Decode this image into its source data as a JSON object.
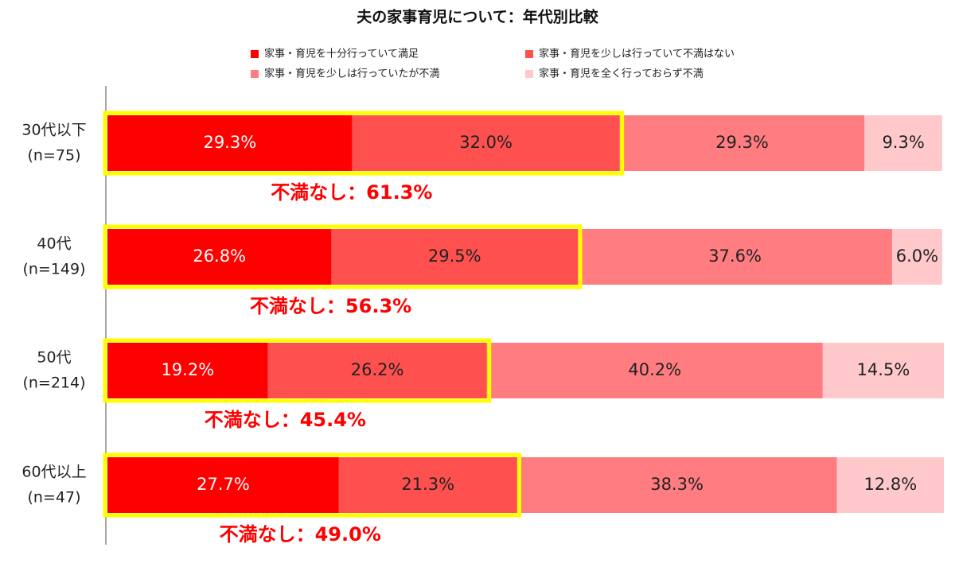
{
  "chart_data": {
    "type": "stacked-bar-horizontal",
    "title": "夫の家事育児について：年代別比較",
    "categories": [
      "30代以下",
      "40代",
      "50代",
      "60代以上"
    ],
    "category_notes": [
      "(n=75)",
      "(n=149)",
      "(n=214)",
      "(n=47)"
    ],
    "series": [
      {
        "name": "家事・育児を十分行っていて満足",
        "color": "#ff0000",
        "values": [
          29.3,
          26.8,
          19.2,
          27.7
        ],
        "value_labels": [
          "29.3%",
          "26.8%",
          "19.2%",
          "27.7%"
        ]
      },
      {
        "name": "家事・育児を少しは行っていて不満はない",
        "color": "#ff5050",
        "values": [
          32.0,
          29.5,
          26.2,
          21.3
        ],
        "value_labels": [
          "32.0%",
          "29.5%",
          "26.2%",
          "21.3%"
        ]
      },
      {
        "name": "家事・育児を少しは行っていたが不満",
        "color": "#ff7c80",
        "values": [
          29.3,
          37.6,
          40.2,
          38.3
        ],
        "value_labels": [
          "29.3%",
          "37.6%",
          "40.2%",
          "38.3%"
        ]
      },
      {
        "name": "家事・育児を全く行っておらず不満",
        "color": "#ffc9cc",
        "values": [
          9.3,
          6.0,
          14.5,
          12.8
        ],
        "value_labels": [
          "9.3%",
          "6.0%",
          "14.5%",
          "12.8%"
        ]
      }
    ],
    "annotations": [
      "不満なし：61.3%",
      "不満なし：56.3%",
      "不満なし：45.4%",
      "不満なし：49.0%"
    ]
  }
}
